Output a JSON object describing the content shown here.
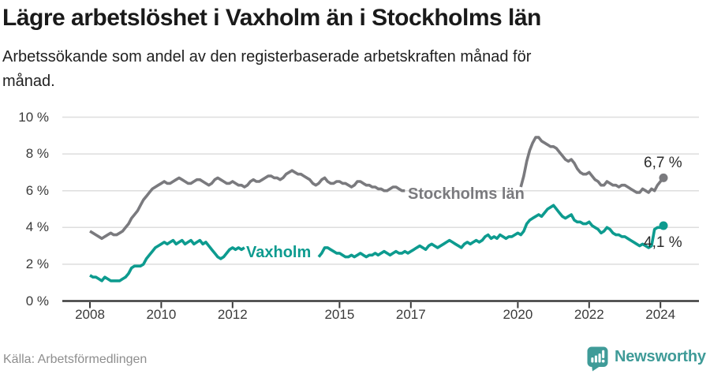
{
  "chart_data": {
    "type": "line",
    "title": "Lägre arbetslöshet i Vaxholm än i Stockholms län",
    "subtitle": "Arbetssökande som andel av den registerbaserade arbetskraften månad för månad.",
    "subtitle_lines": [
      "Arbetssökande som andel av den registerbaserade arbetskraften månad för",
      "månad."
    ],
    "x_unit": "month",
    "x_start": "2008-01",
    "x_end": "2024-02",
    "x_tick_years": [
      2008,
      2010,
      2012,
      2015,
      2017,
      2020,
      2022,
      2024
    ],
    "y_ticks": [
      0,
      2,
      4,
      6,
      8,
      10
    ],
    "y_tick_labels": [
      "0 %",
      "2 %",
      "4 %",
      "6 %",
      "8 %",
      "10 %"
    ],
    "ylim": [
      0,
      10.5
    ],
    "grid": "horizontal",
    "legend_position": "inline-labels",
    "series": [
      {
        "id": "stockholms-lan",
        "name": "Stockholms län",
        "color": "#7a7a7e",
        "end_value": 6.7,
        "end_label": "6,7 %",
        "segments": [
          [
            0,
            106
          ],
          [
            145,
            193
          ]
        ],
        "values": [
          3.8,
          3.7,
          3.6,
          3.5,
          3.4,
          3.5,
          3.6,
          3.7,
          3.6,
          3.6,
          3.7,
          3.8,
          4.0,
          4.2,
          4.5,
          4.7,
          4.9,
          5.2,
          5.5,
          5.7,
          5.9,
          6.1,
          6.2,
          6.3,
          6.4,
          6.5,
          6.4,
          6.4,
          6.5,
          6.6,
          6.7,
          6.6,
          6.5,
          6.4,
          6.4,
          6.5,
          6.6,
          6.6,
          6.5,
          6.4,
          6.3,
          6.4,
          6.6,
          6.7,
          6.6,
          6.5,
          6.4,
          6.4,
          6.5,
          6.4,
          6.3,
          6.3,
          6.2,
          6.3,
          6.5,
          6.6,
          6.5,
          6.5,
          6.6,
          6.7,
          6.8,
          6.8,
          6.7,
          6.7,
          6.6,
          6.7,
          6.9,
          7.0,
          7.1,
          7.0,
          6.9,
          6.9,
          6.8,
          6.7,
          6.6,
          6.4,
          6.3,
          6.4,
          6.6,
          6.7,
          6.5,
          6.4,
          6.4,
          6.5,
          6.5,
          6.4,
          6.4,
          6.3,
          6.2,
          6.3,
          6.5,
          6.5,
          6.4,
          6.3,
          6.3,
          6.2,
          6.2,
          6.1,
          6.1,
          6.0,
          6.0,
          6.1,
          6.2,
          6.2,
          6.1,
          6.0,
          6.0,
          6.0,
          6.0,
          5.9,
          5.9,
          5.8,
          5.8,
          5.9,
          6.1,
          6.1,
          6.0,
          5.9,
          5.9,
          5.9,
          5.9,
          5.8,
          5.8,
          5.7,
          5.6,
          5.7,
          5.9,
          5.9,
          5.8,
          5.7,
          5.7,
          5.7,
          5.8,
          5.7,
          5.7,
          5.6,
          5.6,
          5.7,
          5.9,
          6.0,
          5.9,
          5.9,
          6.0,
          6.1,
          6.1,
          6.2,
          6.8,
          7.6,
          8.2,
          8.6,
          8.9,
          8.9,
          8.7,
          8.6,
          8.5,
          8.4,
          8.4,
          8.3,
          8.1,
          7.9,
          7.7,
          7.6,
          7.7,
          7.5,
          7.2,
          7.0,
          6.9,
          6.9,
          7.0,
          6.8,
          6.6,
          6.5,
          6.3,
          6.3,
          6.5,
          6.4,
          6.3,
          6.3,
          6.2,
          6.3,
          6.3,
          6.2,
          6.1,
          6.0,
          5.9,
          5.9,
          6.1,
          6.0,
          5.9,
          6.1,
          6.0,
          6.3,
          6.5,
          6.7
        ]
      },
      {
        "id": "vaxholm",
        "name": "Vaxholm",
        "color": "#0d9b8f",
        "end_value": 4.1,
        "end_label": "4,1 %",
        "segments": [
          [
            0,
            52
          ],
          [
            77,
            193
          ]
        ],
        "values": [
          1.4,
          1.3,
          1.3,
          1.2,
          1.1,
          1.3,
          1.2,
          1.1,
          1.1,
          1.1,
          1.1,
          1.2,
          1.3,
          1.5,
          1.8,
          1.9,
          1.9,
          1.9,
          2.0,
          2.3,
          2.5,
          2.7,
          2.9,
          3.0,
          3.1,
          3.2,
          3.1,
          3.2,
          3.3,
          3.1,
          3.2,
          3.3,
          3.1,
          3.2,
          3.3,
          3.1,
          3.2,
          3.3,
          3.1,
          3.2,
          3.0,
          2.8,
          2.6,
          2.4,
          2.3,
          2.4,
          2.6,
          2.8,
          2.9,
          2.8,
          2.9,
          2.8,
          2.9,
          2.8,
          2.9,
          3.0,
          2.9,
          2.8,
          2.8,
          2.9,
          2.8,
          2.7,
          2.7,
          2.6,
          2.6,
          2.7,
          2.8,
          2.8,
          2.7,
          2.6,
          2.5,
          2.5,
          2.5,
          2.4,
          2.4,
          2.4,
          2.4,
          2.4,
          2.6,
          2.9,
          2.9,
          2.8,
          2.7,
          2.6,
          2.6,
          2.5,
          2.4,
          2.4,
          2.5,
          2.4,
          2.5,
          2.6,
          2.5,
          2.4,
          2.5,
          2.5,
          2.6,
          2.5,
          2.6,
          2.7,
          2.6,
          2.5,
          2.6,
          2.7,
          2.6,
          2.6,
          2.7,
          2.6,
          2.7,
          2.8,
          2.9,
          3.0,
          2.9,
          2.8,
          3.0,
          3.1,
          3.0,
          2.9,
          3.0,
          3.1,
          3.2,
          3.3,
          3.2,
          3.1,
          3.0,
          2.9,
          3.1,
          3.2,
          3.1,
          3.2,
          3.3,
          3.2,
          3.3,
          3.5,
          3.6,
          3.4,
          3.5,
          3.4,
          3.6,
          3.5,
          3.4,
          3.5,
          3.5,
          3.6,
          3.7,
          3.6,
          3.8,
          4.2,
          4.4,
          4.5,
          4.6,
          4.7,
          4.6,
          4.8,
          5.0,
          5.1,
          5.2,
          5.0,
          4.8,
          4.6,
          4.5,
          4.6,
          4.7,
          4.4,
          4.3,
          4.3,
          4.2,
          4.2,
          4.3,
          4.1,
          4.0,
          3.9,
          3.7,
          3.8,
          4.0,
          3.9,
          3.7,
          3.6,
          3.6,
          3.5,
          3.5,
          3.4,
          3.3,
          3.2,
          3.1,
          3.0,
          3.1,
          3.0,
          2.9,
          3.0,
          3.9,
          4.0,
          4.0,
          4.1
        ]
      }
    ]
  },
  "footer": {
    "source": "Källa: Arbetsförmedlingen",
    "brand": "Newsworthy"
  },
  "colors": {
    "stockholm": "#7a7a7e",
    "vaxholm": "#0d9b8f",
    "brand_teal": "#3f9b98",
    "grid": "#dedede",
    "axis": "#3a3a3a",
    "title_text": "#1a1a1a",
    "muted_text": "#8e8e8e"
  }
}
